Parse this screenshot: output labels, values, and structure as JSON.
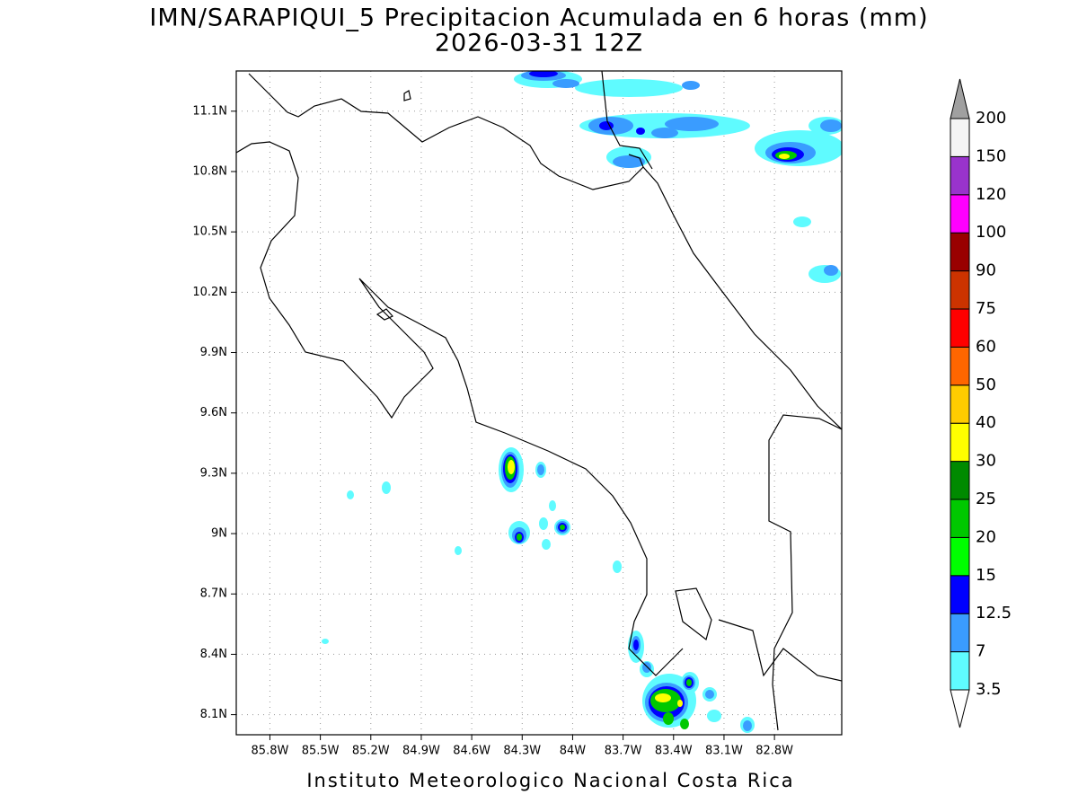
{
  "chart_data": {
    "type": "map",
    "title": "IMN/SARAPIQUI_5 Precipitacion Acumulada en 6 horas (mm)",
    "subtitle": "2026-03-31 12Z",
    "footer": "Instituto Meteorologico Nacional Costa Rica",
    "xlim": [
      -86.0,
      -82.4
    ],
    "ylim": [
      8.0,
      11.3
    ],
    "xticks": [
      {
        "value": -85.8,
        "label": "85.8W"
      },
      {
        "value": -85.5,
        "label": "85.5W"
      },
      {
        "value": -85.2,
        "label": "85.2W"
      },
      {
        "value": -84.9,
        "label": "84.9W"
      },
      {
        "value": -84.6,
        "label": "84.6W"
      },
      {
        "value": -84.3,
        "label": "84.3W"
      },
      {
        "value": -84.0,
        "label": "84W"
      },
      {
        "value": -83.7,
        "label": "83.7W"
      },
      {
        "value": -83.4,
        "label": "83.4W"
      },
      {
        "value": -83.1,
        "label": "83.1W"
      },
      {
        "value": -82.8,
        "label": "82.8W"
      }
    ],
    "yticks": [
      {
        "value": 8.1,
        "label": "8.1N"
      },
      {
        "value": 8.4,
        "label": "8.4N"
      },
      {
        "value": 8.7,
        "label": "8.7N"
      },
      {
        "value": 9.0,
        "label": "9N"
      },
      {
        "value": 9.3,
        "label": "9.3N"
      },
      {
        "value": 9.6,
        "label": "9.6N"
      },
      {
        "value": 9.9,
        "label": "9.9N"
      },
      {
        "value": 10.2,
        "label": "10.2N"
      },
      {
        "value": 10.5,
        "label": "10.5N"
      },
      {
        "value": 10.8,
        "label": "10.8N"
      },
      {
        "value": 11.1,
        "label": "11.1N"
      }
    ],
    "grid": true,
    "colorbar": {
      "levels": [
        3.5,
        7,
        12.5,
        15,
        20,
        25,
        30,
        40,
        50,
        60,
        75,
        90,
        100,
        120,
        150,
        200
      ],
      "colors": [
        "#5ffbff",
        "#3a9cff",
        "#0000ff",
        "#00ff00",
        "#00c800",
        "#008a00",
        "#ffff00",
        "#ffcc00",
        "#ff6600",
        "#ff0000",
        "#cc3300",
        "#990000",
        "#ff00ff",
        "#9933cc",
        "#f4f4f4"
      ],
      "over_color": "#a0a0a0",
      "under_color": "#ffffff"
    }
  }
}
